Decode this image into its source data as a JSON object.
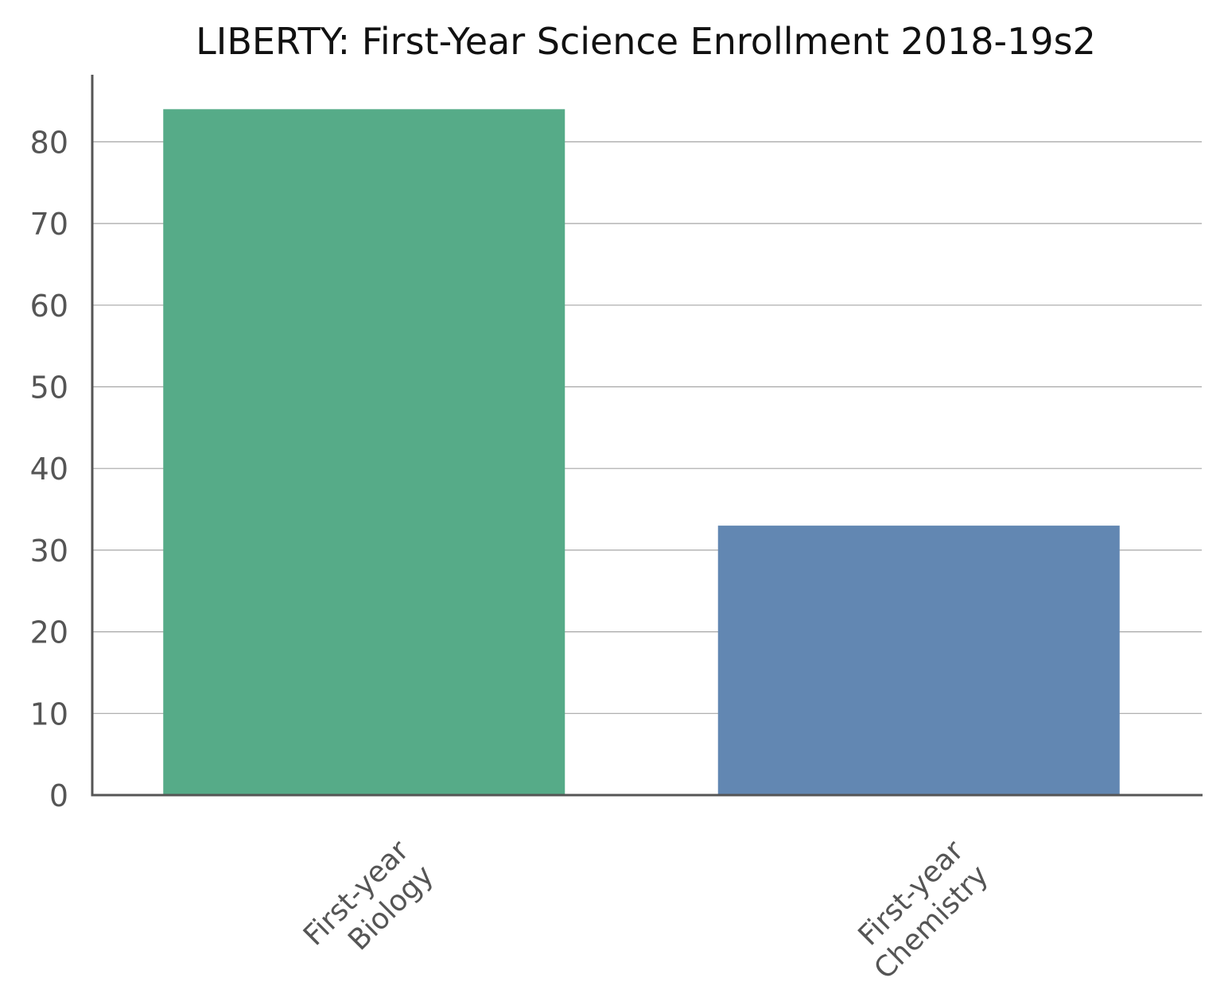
{
  "chart_data": {
    "type": "bar",
    "title": "LIBERTY: First-Year Science Enrollment 2018-19s2",
    "xlabel": "",
    "ylabel": "",
    "categories": [
      [
        "First-year",
        "Biology"
      ],
      [
        "First-year",
        "Chemistry"
      ]
    ],
    "values": [
      84,
      33
    ],
    "colors": [
      "#56ab88",
      "#6287b2"
    ],
    "ylim": [
      0,
      88
    ],
    "yticks": [
      0,
      10,
      20,
      30,
      40,
      50,
      60,
      70,
      80
    ],
    "grid": true,
    "legend": "none"
  }
}
